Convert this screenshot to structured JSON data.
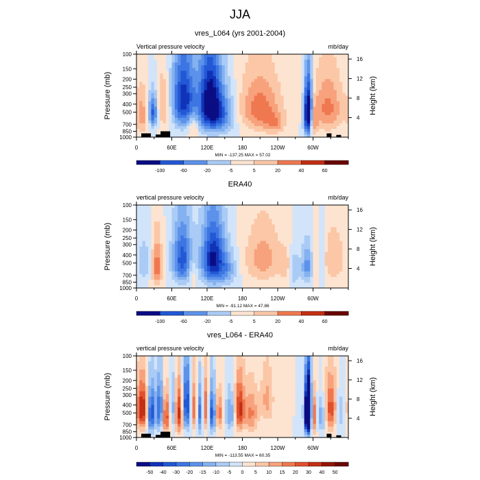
{
  "page_title": "JJA",
  "chart_data": [
    {
      "type": "heatmap",
      "title": "vres_L064 (yrs 2001-2004)",
      "left_label": "Vertical pressure velocity",
      "right_label": "mb/day",
      "ylabel": "Pressure (mb)",
      "y2label": "Height (km)",
      "xticks": [
        "0",
        "60E",
        "120E",
        "180",
        "120W",
        "60W"
      ],
      "yticks": [
        "100",
        "150",
        "200",
        "250",
        "300",
        "400",
        "500",
        "700",
        "850",
        "1000"
      ],
      "y2ticks": [
        "16",
        "12",
        "8",
        "4"
      ],
      "stats": "MIN = -137.25  MAX = 57.02",
      "colorbar_labels": [
        "-100",
        "-60",
        "-20",
        "-5",
        "5",
        "20",
        "40",
        "60"
      ],
      "scale": 100,
      "features": [
        {
          "lon": 10,
          "p": 550,
          "dlon": 8,
          "dp": 380,
          "v": 30
        },
        {
          "lon": 28,
          "p": 500,
          "dlon": 6,
          "dp": 250,
          "v": -70
        },
        {
          "lon": 45,
          "p": 420,
          "dlon": 8,
          "dp": 320,
          "v": 32
        },
        {
          "lon": 80,
          "p": 350,
          "dlon": 14,
          "dp": 380,
          "v": -85
        },
        {
          "lon": 96,
          "p": 750,
          "dlon": 6,
          "dp": 250,
          "v": 25
        },
        {
          "lon": 125,
          "p": 400,
          "dlon": 14,
          "dp": 420,
          "v": -110
        },
        {
          "lon": 150,
          "p": 550,
          "dlon": 14,
          "dp": 350,
          "v": -40
        },
        {
          "lon": 210,
          "p": 450,
          "dlon": 25,
          "dp": 380,
          "v": 45
        },
        {
          "lon": 235,
          "p": 700,
          "dlon": 12,
          "dp": 200,
          "v": 25
        },
        {
          "lon": 292,
          "p": 520,
          "dlon": 5,
          "dp": 400,
          "v": -137
        },
        {
          "lon": 300,
          "p": 650,
          "dlon": 5,
          "dp": 300,
          "v": 40
        },
        {
          "lon": 325,
          "p": 450,
          "dlon": 18,
          "dp": 380,
          "v": 42
        }
      ]
    },
    {
      "type": "heatmap",
      "title": "ERA40",
      "left_label": "vertical pressure velocity",
      "right_label": "mb/day",
      "ylabel": "Pressure (mb)",
      "y2label": "Height (km)",
      "xticks": [
        "0",
        "60E",
        "120E",
        "180",
        "120W",
        "60W"
      ],
      "yticks": [
        "100",
        "150",
        "200",
        "250",
        "300",
        "400",
        "500",
        "700",
        "850",
        "1000"
      ],
      "y2ticks": [
        "16",
        "12",
        "8",
        "4"
      ],
      "stats": "MIN = -91.12  MAX = 47.86",
      "colorbar_labels": [
        "-100",
        "-60",
        "-20",
        "-5",
        "5",
        "20",
        "40",
        "60"
      ],
      "scale": 100,
      "features": [
        {
          "lon": 12,
          "p": 500,
          "dlon": 8,
          "dp": 300,
          "v": -25
        },
        {
          "lon": 35,
          "p": 550,
          "dlon": 6,
          "dp": 380,
          "v": 48
        },
        {
          "lon": 78,
          "p": 450,
          "dlon": 12,
          "dp": 400,
          "v": -70
        },
        {
          "lon": 95,
          "p": 650,
          "dlon": 5,
          "dp": 300,
          "v": 20
        },
        {
          "lon": 130,
          "p": 450,
          "dlon": 14,
          "dp": 420,
          "v": -91
        },
        {
          "lon": 155,
          "p": 600,
          "dlon": 12,
          "dp": 300,
          "v": -30
        },
        {
          "lon": 215,
          "p": 450,
          "dlon": 22,
          "dp": 380,
          "v": 32
        },
        {
          "lon": 255,
          "p": 550,
          "dlon": 8,
          "dp": 300,
          "v": 15
        },
        {
          "lon": 268,
          "p": 600,
          "dlon": 6,
          "dp": 350,
          "v": -25
        },
        {
          "lon": 290,
          "p": 550,
          "dlon": 7,
          "dp": 320,
          "v": -45
        },
        {
          "lon": 305,
          "p": 500,
          "dlon": 5,
          "dp": 350,
          "v": 15
        },
        {
          "lon": 315,
          "p": 450,
          "dlon": 4,
          "dp": 350,
          "v": -20
        },
        {
          "lon": 335,
          "p": 450,
          "dlon": 14,
          "dp": 350,
          "v": 25
        }
      ]
    },
    {
      "type": "heatmap",
      "title": "vres_L064 - ERA40",
      "left_label": "vertical pressure velocity",
      "right_label": "mb/day",
      "ylabel": "Pressure (mb)",
      "y2label": "Height (km)",
      "xticks": [
        "0",
        "60E",
        "120E",
        "180",
        "120W",
        "60W"
      ],
      "yticks": [
        "100",
        "150",
        "200",
        "250",
        "300",
        "400",
        "500",
        "700",
        "850",
        "1000"
      ],
      "y2ticks": [
        "16",
        "12",
        "8",
        "4"
      ],
      "stats": "MIN = -113.55  MAX = 60.35",
      "colorbar_labels": [
        "-50",
        "-40",
        "-30",
        "-20",
        "-15",
        "-10",
        "-5",
        "0",
        "5",
        "10",
        "15",
        "20",
        "30",
        "40",
        "50"
      ],
      "scale": 50,
      "features": [
        {
          "lon": 10,
          "p": 450,
          "dlon": 7,
          "dp": 320,
          "v": 40
        },
        {
          "lon": 25,
          "p": 500,
          "dlon": 5,
          "dp": 350,
          "v": -40
        },
        {
          "lon": 40,
          "p": 450,
          "dlon": 4,
          "dp": 350,
          "v": -35
        },
        {
          "lon": 50,
          "p": 550,
          "dlon": 5,
          "dp": 350,
          "v": 30
        },
        {
          "lon": 62,
          "p": 450,
          "dlon": 4,
          "dp": 350,
          "v": -20
        },
        {
          "lon": 72,
          "p": 500,
          "dlon": 5,
          "dp": 380,
          "v": 35
        },
        {
          "lon": 85,
          "p": 400,
          "dlon": 5,
          "dp": 380,
          "v": -40
        },
        {
          "lon": 98,
          "p": 450,
          "dlon": 4,
          "dp": 350,
          "v": 25
        },
        {
          "lon": 108,
          "p": 500,
          "dlon": 4,
          "dp": 350,
          "v": -30
        },
        {
          "lon": 118,
          "p": 450,
          "dlon": 4,
          "dp": 350,
          "v": 30
        },
        {
          "lon": 128,
          "p": 500,
          "dlon": 5,
          "dp": 350,
          "v": -35
        },
        {
          "lon": 140,
          "p": 500,
          "dlon": 4,
          "dp": 300,
          "v": 25
        },
        {
          "lon": 160,
          "p": 500,
          "dlon": 6,
          "dp": 300,
          "v": -20
        },
        {
          "lon": 175,
          "p": 450,
          "dlon": 6,
          "dp": 350,
          "v": 35
        },
        {
          "lon": 195,
          "p": 500,
          "dlon": 8,
          "dp": 350,
          "v": 20
        },
        {
          "lon": 222,
          "p": 350,
          "dlon": 8,
          "dp": 300,
          "v": 15
        },
        {
          "lon": 292,
          "p": 500,
          "dlon": 4,
          "dp": 380,
          "v": -113
        },
        {
          "lon": 300,
          "p": 550,
          "dlon": 4,
          "dp": 350,
          "v": 35
        },
        {
          "lon": 315,
          "p": 550,
          "dlon": 6,
          "dp": 300,
          "v": -20
        },
        {
          "lon": 330,
          "p": 450,
          "dlon": 8,
          "dp": 350,
          "v": 30
        },
        {
          "lon": 345,
          "p": 500,
          "dlon": 6,
          "dp": 300,
          "v": -15
        }
      ]
    }
  ],
  "colors": {
    "blue": [
      "#0b0d84",
      "#1133b8",
      "#2358d5",
      "#3d76e2",
      "#5d92ea",
      "#84b1f0",
      "#aacbf5",
      "#d2e4fa"
    ],
    "red": [
      "#fde4d1",
      "#fbc7a7",
      "#f7a27c",
      "#ef7850",
      "#e1502d",
      "#c22f15",
      "#931505",
      "#6a0700"
    ],
    "topo": "#000000"
  }
}
